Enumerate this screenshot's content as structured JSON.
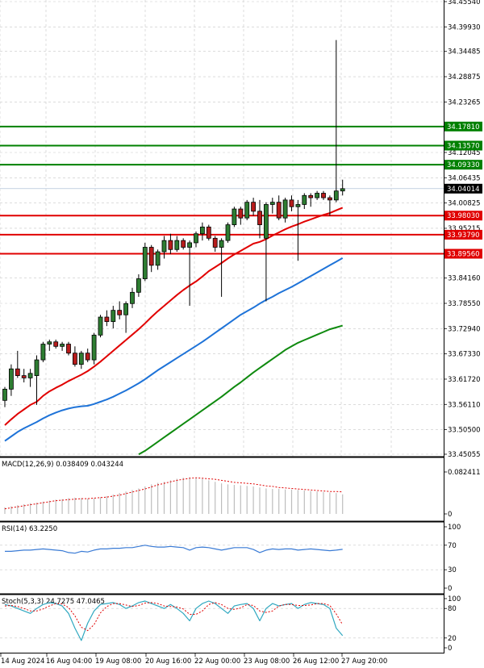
{
  "chart_data": {
    "type": "candlestick",
    "main": {
      "y_ticks": [
        "34.45540",
        "34.39930",
        "34.34485",
        "34.28875",
        "34.23265",
        "34.12045",
        "34.06435",
        "34.00825",
        "33.95215",
        "33.84160",
        "33.78550",
        "33.72940",
        "33.67330",
        "33.61720",
        "33.56110",
        "33.50500",
        "33.45055"
      ],
      "y_tick_values": [
        34.4554,
        34.3993,
        34.34485,
        34.28875,
        34.23265,
        34.12045,
        34.06435,
        34.00825,
        33.95215,
        33.8416,
        33.7855,
        33.7294,
        33.6733,
        33.6172,
        33.5611,
        33.505,
        33.45055
      ],
      "ylim": [
        33.45055,
        34.4554
      ],
      "current_price": {
        "label": "34.04014",
        "value": 34.04014
      },
      "resistance_levels": [
        {
          "label": "34.17810",
          "value": 34.1781
        },
        {
          "label": "34.13570",
          "value": 34.1357
        },
        {
          "label": "34.09330",
          "value": 34.0933
        }
      ],
      "support_levels": [
        {
          "label": "33.98030",
          "value": 33.9803
        },
        {
          "label": "33.93790",
          "value": 33.9379
        },
        {
          "label": "33.89560",
          "value": 33.8956
        }
      ],
      "candles": [
        {
          "o": 33.57,
          "h": 33.6,
          "l": 33.555,
          "c": 33.595
        },
        {
          "o": 33.595,
          "h": 33.65,
          "l": 33.58,
          "c": 33.64
        },
        {
          "o": 33.64,
          "h": 33.68,
          "l": 33.62,
          "c": 33.625
        },
        {
          "o": 33.625,
          "h": 33.64,
          "l": 33.61,
          "c": 33.62
        },
        {
          "o": 33.62,
          "h": 33.64,
          "l": 33.6,
          "c": 33.63
        },
        {
          "o": 33.625,
          "h": 33.67,
          "l": 33.56,
          "c": 33.66
        },
        {
          "o": 33.66,
          "h": 33.7,
          "l": 33.655,
          "c": 33.695
        },
        {
          "o": 33.695,
          "h": 33.705,
          "l": 33.68,
          "c": 33.7
        },
        {
          "o": 33.7,
          "h": 33.705,
          "l": 33.685,
          "c": 33.69
        },
        {
          "o": 33.69,
          "h": 33.7,
          "l": 33.68,
          "c": 33.695
        },
        {
          "o": 33.695,
          "h": 33.7,
          "l": 33.67,
          "c": 33.675
        },
        {
          "o": 33.675,
          "h": 33.69,
          "l": 33.645,
          "c": 33.65
        },
        {
          "o": 33.65,
          "h": 33.68,
          "l": 33.64,
          "c": 33.675
        },
        {
          "o": 33.675,
          "h": 33.685,
          "l": 33.655,
          "c": 33.66
        },
        {
          "o": 33.66,
          "h": 33.72,
          "l": 33.65,
          "c": 33.715
        },
        {
          "o": 33.715,
          "h": 33.76,
          "l": 33.71,
          "c": 33.755
        },
        {
          "o": 33.755,
          "h": 33.77,
          "l": 33.735,
          "c": 33.745
        },
        {
          "o": 33.745,
          "h": 33.78,
          "l": 33.73,
          "c": 33.77
        },
        {
          "o": 33.77,
          "h": 33.79,
          "l": 33.75,
          "c": 33.76
        },
        {
          "o": 33.76,
          "h": 33.79,
          "l": 33.72,
          "c": 33.785
        },
        {
          "o": 33.785,
          "h": 33.82,
          "l": 33.775,
          "c": 33.81
        },
        {
          "o": 33.81,
          "h": 33.85,
          "l": 33.8,
          "c": 33.84
        },
        {
          "o": 33.84,
          "h": 33.92,
          "l": 33.835,
          "c": 33.91
        },
        {
          "o": 33.91,
          "h": 33.915,
          "l": 33.855,
          "c": 33.87
        },
        {
          "o": 33.87,
          "h": 33.905,
          "l": 33.86,
          "c": 33.9
        },
        {
          "o": 33.9,
          "h": 33.935,
          "l": 33.885,
          "c": 33.925
        },
        {
          "o": 33.925,
          "h": 33.94,
          "l": 33.895,
          "c": 33.905
        },
        {
          "o": 33.905,
          "h": 33.935,
          "l": 33.9,
          "c": 33.925
        },
        {
          "o": 33.925,
          "h": 33.93,
          "l": 33.905,
          "c": 33.91
        },
        {
          "o": 33.91,
          "h": 33.925,
          "l": 33.78,
          "c": 33.92
        },
        {
          "o": 33.92,
          "h": 33.945,
          "l": 33.91,
          "c": 33.94
        },
        {
          "o": 33.94,
          "h": 33.965,
          "l": 33.925,
          "c": 33.955
        },
        {
          "o": 33.955,
          "h": 33.96,
          "l": 33.925,
          "c": 33.93
        },
        {
          "o": 33.93,
          "h": 33.935,
          "l": 33.9,
          "c": 33.91
        },
        {
          "o": 33.91,
          "h": 33.93,
          "l": 33.8,
          "c": 33.925
        },
        {
          "o": 33.925,
          "h": 33.965,
          "l": 33.92,
          "c": 33.96
        },
        {
          "o": 33.96,
          "h": 34.0,
          "l": 33.955,
          "c": 33.995
        },
        {
          "o": 33.995,
          "h": 34.0,
          "l": 33.96,
          "c": 33.975
        },
        {
          "o": 33.975,
          "h": 34.015,
          "l": 33.97,
          "c": 34.01
        },
        {
          "o": 34.01,
          "h": 34.02,
          "l": 33.98,
          "c": 33.99
        },
        {
          "o": 33.99,
          "h": 34.015,
          "l": 33.93,
          "c": 33.96
        },
        {
          "o": 33.93,
          "h": 34.01,
          "l": 33.79,
          "c": 34.005
        },
        {
          "o": 34.005,
          "h": 34.02,
          "l": 33.985,
          "c": 34.01
        },
        {
          "o": 34.01,
          "h": 34.025,
          "l": 33.97,
          "c": 33.975
        },
        {
          "o": 33.975,
          "h": 34.02,
          "l": 33.965,
          "c": 34.015
        },
        {
          "o": 34.015,
          "h": 34.025,
          "l": 33.99,
          "c": 34.0
        },
        {
          "o": 34.0,
          "h": 34.015,
          "l": 33.88,
          "c": 34.005
        },
        {
          "o": 34.005,
          "h": 34.03,
          "l": 33.995,
          "c": 34.025
        },
        {
          "o": 34.025,
          "h": 34.03,
          "l": 34.0,
          "c": 34.02
        },
        {
          "o": 34.02,
          "h": 34.035,
          "l": 34.015,
          "c": 34.03
        },
        {
          "o": 34.03,
          "h": 34.035,
          "l": 34.015,
          "c": 34.02
        },
        {
          "o": 34.02,
          "h": 34.025,
          "l": 33.98,
          "c": 34.015
        },
        {
          "o": 34.015,
          "h": 34.37,
          "l": 34.01,
          "c": 34.035
        },
        {
          "o": 34.035,
          "h": 34.06,
          "l": 34.025,
          "c": 34.04014
        }
      ],
      "ma_red": [
        33.515,
        33.528,
        33.54,
        33.55,
        33.56,
        33.567,
        33.58,
        33.59,
        33.598,
        33.605,
        33.613,
        33.62,
        33.627,
        33.635,
        33.645,
        33.656,
        33.668,
        33.68,
        33.692,
        33.704,
        33.716,
        33.728,
        33.741,
        33.755,
        33.768,
        33.78,
        33.792,
        33.804,
        33.815,
        33.825,
        33.834,
        33.845,
        33.857,
        33.866,
        33.875,
        33.885,
        33.894,
        33.902,
        33.91,
        33.918,
        33.922,
        33.928,
        33.936,
        33.943,
        33.95,
        33.956,
        33.961,
        33.967,
        33.972,
        33.977,
        33.982,
        33.986,
        33.992,
        33.998
      ],
      "ma_blue": [
        33.48,
        33.49,
        33.5,
        33.508,
        33.515,
        33.522,
        33.53,
        33.537,
        33.543,
        33.548,
        33.552,
        33.555,
        33.557,
        33.558,
        33.562,
        33.567,
        33.572,
        33.578,
        33.585,
        33.592,
        33.6,
        33.608,
        33.617,
        33.627,
        33.637,
        33.646,
        33.655,
        33.664,
        33.673,
        33.682,
        33.691,
        33.7,
        33.71,
        33.72,
        33.73,
        33.74,
        33.75,
        33.76,
        33.768,
        33.776,
        33.785,
        33.793,
        33.8,
        33.808,
        33.815,
        33.822,
        33.83,
        33.838,
        33.846,
        33.854,
        33.862,
        33.87,
        33.878,
        33.886
      ],
      "ma_green": {
        "start_index": 21,
        "values": [
          33.45,
          33.458,
          33.468,
          33.478,
          33.488,
          33.498,
          33.508,
          33.518,
          33.528,
          33.538,
          33.548,
          33.558,
          33.568,
          33.578,
          33.589,
          33.6,
          33.61,
          33.621,
          33.632,
          33.642,
          33.652,
          33.662,
          33.672,
          33.682,
          33.69,
          33.698,
          33.704,
          33.71,
          33.716,
          33.722,
          33.728,
          33.732,
          33.736
        ]
      }
    },
    "macd": {
      "label": "MACD(12,26,9) 0.038409 0.043244",
      "y_ticks": [
        "0.082411",
        "0"
      ],
      "ylim": [
        0,
        0.082411
      ],
      "histogram": [
        0.013,
        0.015,
        0.017,
        0.019,
        0.021,
        0.022,
        0.024,
        0.026,
        0.028,
        0.029,
        0.031,
        0.032,
        0.031,
        0.03,
        0.031,
        0.033,
        0.035,
        0.038,
        0.041,
        0.044,
        0.047,
        0.05,
        0.054,
        0.058,
        0.061,
        0.063,
        0.066,
        0.069,
        0.071,
        0.072,
        0.071,
        0.069,
        0.066,
        0.063,
        0.06,
        0.058,
        0.057,
        0.056,
        0.055,
        0.054,
        0.052,
        0.05,
        0.049,
        0.049,
        0.048,
        0.048,
        0.047,
        0.046,
        0.045,
        0.044,
        0.043,
        0.042,
        0.041,
        0.0384
      ],
      "signal": [
        0.01,
        0.012,
        0.014,
        0.016,
        0.018,
        0.02,
        0.022,
        0.024,
        0.026,
        0.027,
        0.028,
        0.029,
        0.03,
        0.03,
        0.031,
        0.032,
        0.033,
        0.035,
        0.037,
        0.04,
        0.043,
        0.046,
        0.049,
        0.053,
        0.057,
        0.06,
        0.063,
        0.066,
        0.068,
        0.07,
        0.071,
        0.07,
        0.069,
        0.068,
        0.066,
        0.064,
        0.062,
        0.061,
        0.06,
        0.059,
        0.057,
        0.055,
        0.054,
        0.052,
        0.051,
        0.05,
        0.049,
        0.048,
        0.047,
        0.046,
        0.045,
        0.044,
        0.044,
        0.0432
      ]
    },
    "rsi": {
      "label": "RSI(14) 63.2250",
      "y_ticks": [
        "100",
        "70",
        "30",
        "0"
      ],
      "ylim": [
        0,
        100
      ],
      "values": [
        60,
        60,
        61,
        62,
        62,
        63,
        64,
        63,
        62,
        61,
        58,
        57,
        60,
        59,
        62,
        64,
        64,
        65,
        65,
        66,
        66,
        68,
        70,
        68,
        67,
        67,
        68,
        67,
        66,
        62,
        66,
        67,
        66,
        64,
        62,
        64,
        66,
        66,
        66,
        63,
        58,
        62,
        64,
        63,
        64,
        64,
        62,
        63,
        64,
        63,
        62,
        61,
        62,
        63.225
      ]
    },
    "stoch": {
      "label": "Stoch(5,3,3) 24.7275 47.0465",
      "y_ticks": [
        "100",
        "80",
        "20",
        "0"
      ],
      "ylim": [
        0,
        100
      ],
      "k": [
        88,
        85,
        80,
        75,
        70,
        80,
        88,
        92,
        90,
        85,
        70,
        40,
        15,
        50,
        75,
        88,
        90,
        92,
        88,
        80,
        85,
        92,
        95,
        90,
        85,
        80,
        88,
        80,
        70,
        55,
        80,
        90,
        95,
        90,
        80,
        70,
        85,
        88,
        90,
        80,
        55,
        80,
        90,
        85,
        88,
        90,
        80,
        88,
        92,
        90,
        88,
        80,
        40,
        24.7275
      ],
      "d": [
        85,
        86,
        84,
        80,
        75,
        75,
        79,
        85,
        90,
        89,
        82,
        65,
        42,
        35,
        47,
        71,
        84,
        90,
        90,
        87,
        84,
        86,
        91,
        92,
        90,
        85,
        84,
        83,
        79,
        68,
        68,
        75,
        88,
        92,
        88,
        80,
        78,
        81,
        88,
        86,
        75,
        72,
        75,
        85,
        88,
        88,
        86,
        86,
        87,
        90,
        90,
        86,
        69,
        47.0465
      ]
    },
    "x_labels": [
      {
        "label": "14 Aug 2024",
        "index": 0
      },
      {
        "label": "16 Aug 04:00",
        "index": 6
      },
      {
        "label": "19 Aug 08:00",
        "index": 14
      },
      {
        "label": "20 Aug 16:00",
        "index": 22
      },
      {
        "label": "22 Aug 00:00",
        "index": 30
      },
      {
        "label": "23 Aug 08:00",
        "index": 38
      },
      {
        "label": "26 Aug 12:00",
        "index": 45
      },
      {
        "label": "27 Aug 20:00",
        "index": 52
      }
    ],
    "colors": {
      "bull_body": "#2e7d32",
      "bear_body": "#b71c1c",
      "ma_red": "#e10000",
      "ma_blue": "#1e73d8",
      "ma_green": "#0f8a0f",
      "resistance": "#008000",
      "support": "#e00000",
      "rsi_line": "#3a7bd5",
      "stoch_k": "#30a8c0",
      "stoch_d": "#e00000",
      "macd_hist": "#bdbdbd",
      "macd_signal": "#e00000"
    }
  }
}
